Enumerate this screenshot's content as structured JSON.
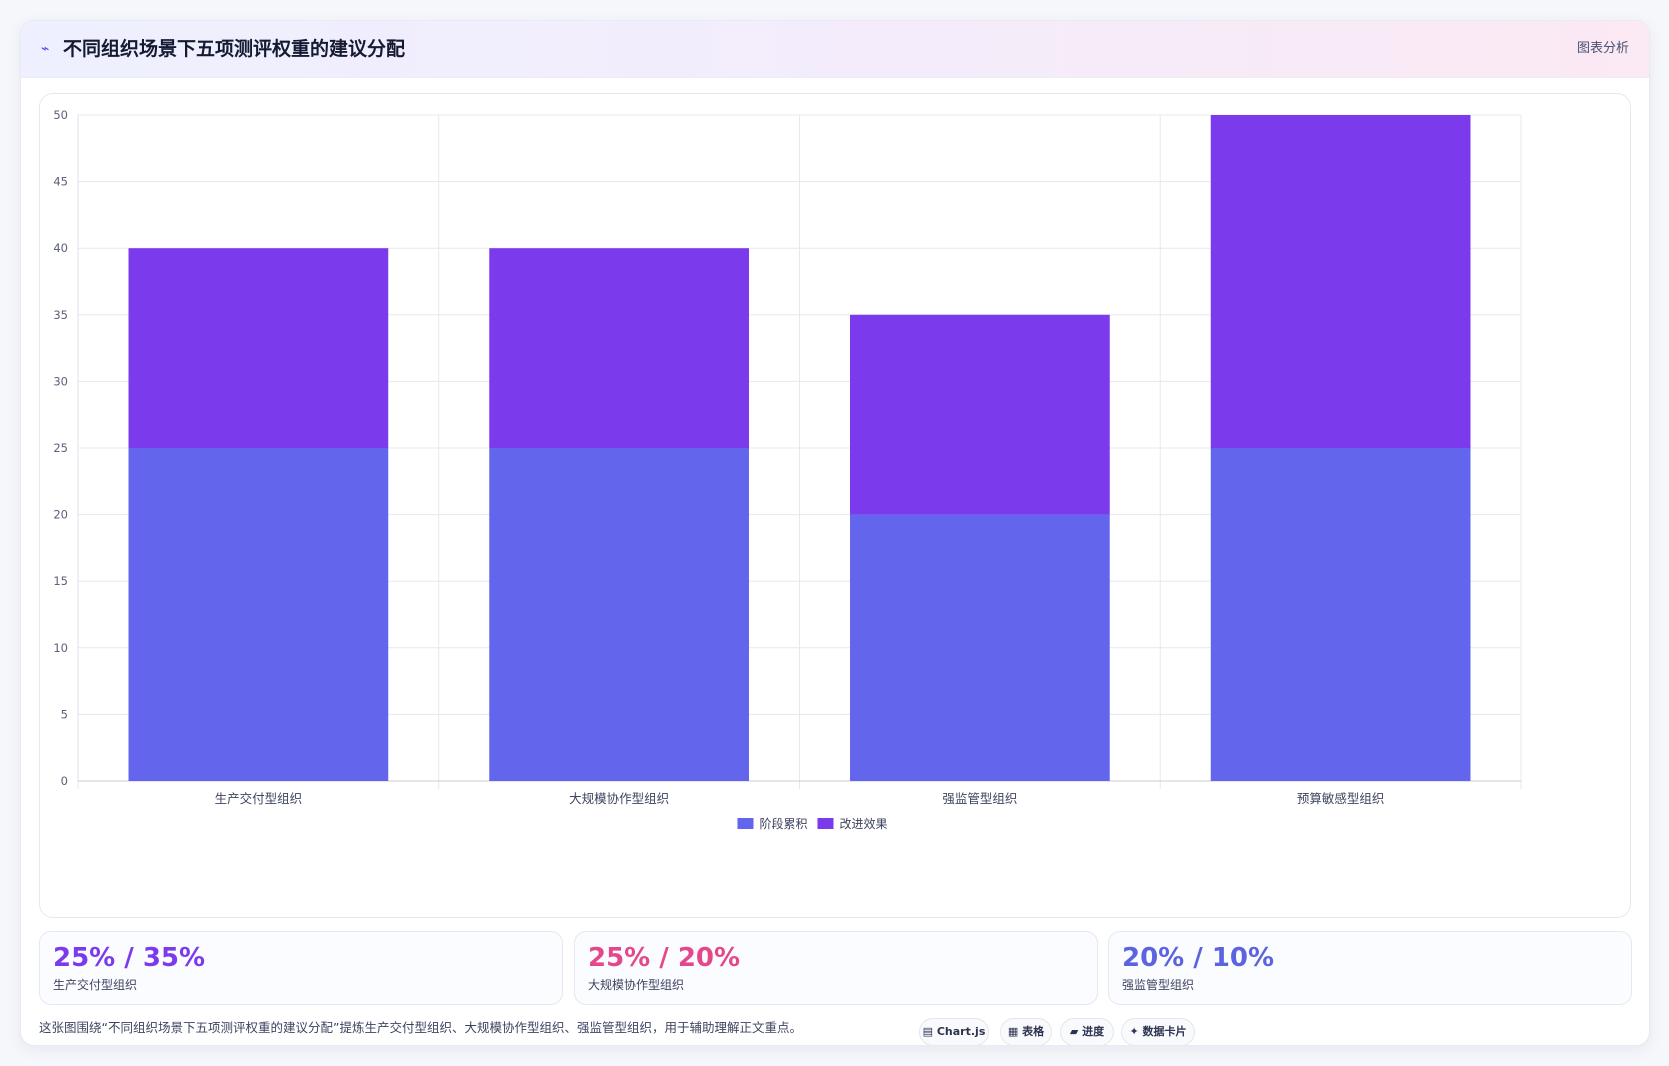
{
  "header": {
    "icon": "trend-line-icon",
    "title": "不同组织场景下五项测评权重的建议分配",
    "tag": "图表分析"
  },
  "chart_data": {
    "type": "bar",
    "stacked": true,
    "categories": [
      "生产交付型组织",
      "大规模协作型组织",
      "强监管型组织",
      "预算敏感型组织"
    ],
    "series": [
      {
        "name": "阶段累积",
        "values": [
          25,
          25,
          20,
          25
        ],
        "color": "#6366ec"
      },
      {
        "name": "改进效果",
        "values": [
          15,
          15,
          15,
          25
        ],
        "color": "#7c3aed"
      }
    ],
    "ylim": [
      0,
      50
    ],
    "yticks": [
      0,
      5,
      10,
      15,
      20,
      25,
      30,
      35,
      40,
      45,
      50
    ],
    "grid": true,
    "legend": "bottom"
  },
  "stats": [
    {
      "value": "25% / 35%",
      "label": "生产交付型组织",
      "color": "#7c3aed"
    },
    {
      "value": "25% / 20%",
      "label": "大规模协作型组织",
      "color": "#e5488a"
    },
    {
      "value": "20% / 10%",
      "label": "强监管型组织",
      "color": "#5b63e0"
    }
  ],
  "caption": "这张图围绕“不同组织场景下五项测评权重的建议分配”提炼生产交付型组织、大规模协作型组织、强监管型组织，用于辅助理解正文重点。",
  "chips": [
    {
      "icon": "chart-icon",
      "glyph": "▤",
      "label": "Chart.js"
    },
    {
      "icon": "table-icon",
      "glyph": "▦",
      "label": "表格"
    },
    {
      "icon": "progress-icon",
      "glyph": "▰",
      "label": "进度"
    },
    {
      "icon": "sparkle-icon",
      "glyph": "✦",
      "label": "数据卡片"
    }
  ]
}
